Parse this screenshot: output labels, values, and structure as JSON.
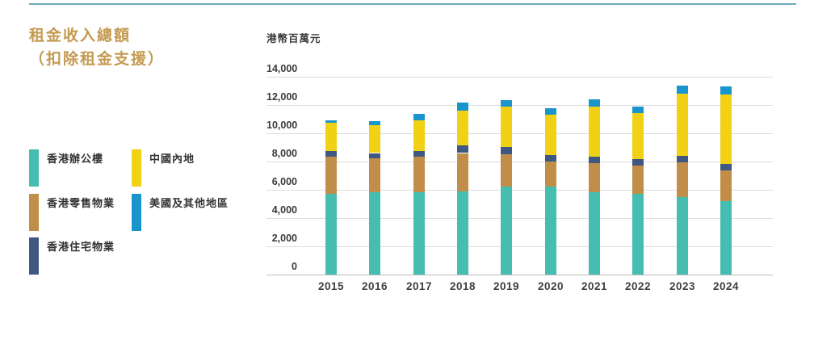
{
  "page": {
    "title_line1": "租金收入總額",
    "title_line2": "（扣除租金支援）"
  },
  "legend": {
    "items": [
      {
        "label": "香港辦公樓",
        "color": "#45bdb1"
      },
      {
        "label": "中國內地",
        "color": "#f0d114"
      },
      {
        "label": "香港零售物業",
        "color": "#c08e48"
      },
      {
        "label": "美國及其他地區",
        "color": "#1995ce"
      },
      {
        "label": "香港住宅物業",
        "color": "#3f5881"
      }
    ]
  },
  "chart_data": {
    "type": "stacked-bar",
    "title": "租金收入總額（扣除租金支援）",
    "unit_label": "港幣百萬元",
    "categories": [
      "2015",
      "2016",
      "2017",
      "2018",
      "2019",
      "2020",
      "2021",
      "2022",
      "2023",
      "2024"
    ],
    "series": [
      {
        "name": "香港辦公樓",
        "color": "#45bdb1",
        "values": [
          5690,
          5830,
          5810,
          5900,
          6230,
          6230,
          5810,
          5720,
          5490,
          5190
        ]
      },
      {
        "name": "香港零售物業",
        "color": "#c08e48",
        "values": [
          2630,
          2390,
          2520,
          2700,
          2280,
          1770,
          2050,
          2000,
          2450,
          2180
        ]
      },
      {
        "name": "香港住宅物業",
        "color": "#3f5881",
        "values": [
          430,
          380,
          420,
          530,
          500,
          470,
          480,
          470,
          440,
          440
        ]
      },
      {
        "name": "中國內地",
        "color": "#f0d114",
        "values": [
          2010,
          1970,
          2190,
          2470,
          2850,
          2820,
          3550,
          3230,
          4440,
          4940
        ]
      },
      {
        "name": "美國及其他地區",
        "color": "#1995ce",
        "values": [
          170,
          270,
          420,
          570,
          460,
          460,
          530,
          440,
          570,
          570
        ]
      }
    ],
    "totals": [
      10930,
      10840,
      11360,
      12170,
      12320,
      11750,
      12420,
      11860,
      13390,
      13320
    ],
    "ylim": [
      0,
      14000
    ],
    "ytick_step": 2000,
    "ytick_labels": [
      "0",
      "2,000",
      "4,000",
      "6,000",
      "8,000",
      "10,000",
      "12,000",
      "14,000"
    ],
    "grid": "horizontal-only",
    "legend_position": "left"
  }
}
